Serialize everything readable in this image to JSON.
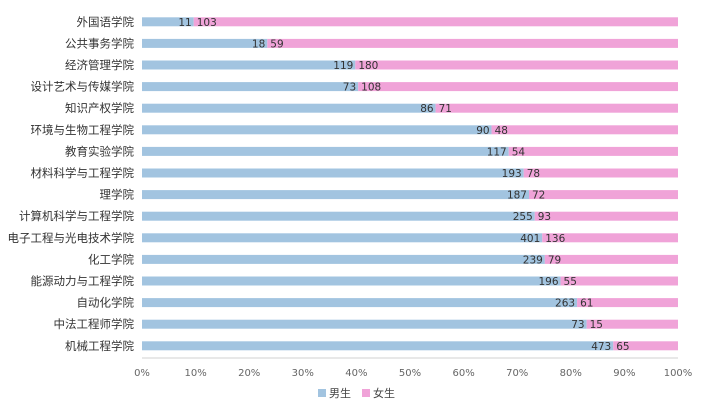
{
  "chart_data": {
    "type": "bar",
    "orientation": "horizontal",
    "stacking": "percent",
    "title": "",
    "categories": [
      "外国语学院",
      "公共事务学院",
      "经济管理学院",
      "设计艺术与传媒学院",
      "知识产权学院",
      "环境与生物工程学院",
      "教育实验学院",
      "材料科学与工程学院",
      "理学院",
      "计算机科学与工程学院",
      "电子工程与光电技术学院",
      "化工学院",
      "能源动力与工程学院",
      "自动化学院",
      "中法工程师学院",
      "机械工程学院"
    ],
    "series": [
      {
        "name": "男生",
        "color": "#a2c4e0",
        "values": [
          11,
          18,
          119,
          73,
          86,
          90,
          117,
          193,
          187,
          255,
          401,
          239,
          196,
          263,
          73,
          473
        ]
      },
      {
        "name": "女生",
        "color": "#f0a3d8",
        "values": [
          103,
          59,
          180,
          108,
          71,
          48,
          54,
          78,
          72,
          93,
          136,
          79,
          55,
          61,
          15,
          65
        ]
      }
    ],
    "xlim": [
      0,
      100
    ],
    "xticks": [
      "0%",
      "10%",
      "20%",
      "30%",
      "40%",
      "50%",
      "60%",
      "70%",
      "80%",
      "90%",
      "100%"
    ],
    "grid": false,
    "legend_position": "bottom"
  }
}
